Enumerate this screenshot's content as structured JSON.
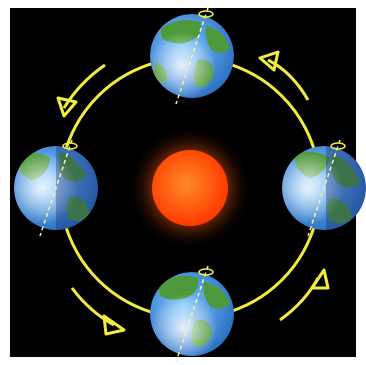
{
  "diagram": {
    "background_color": "#000000",
    "orbit_color": "#f2ec3a",
    "sun": {
      "core_color": "#ff5a10",
      "glow_color": "#ff7a1a",
      "highlight_color": "#ff8a2a"
    },
    "earth": {
      "ocean_color": "#3b8fd8",
      "land_color": "#4e9a3a",
      "lit_highlight_color": "#e8f6ff",
      "night_shade_color": "#1a2a6a",
      "axis_color": "#f5f0b0",
      "axial_tilt_degrees": 23.5
    },
    "orbit_direction": "counterclockwise",
    "earth_positions": [
      "top",
      "left",
      "bottom",
      "right"
    ],
    "arrow_count": 4
  }
}
